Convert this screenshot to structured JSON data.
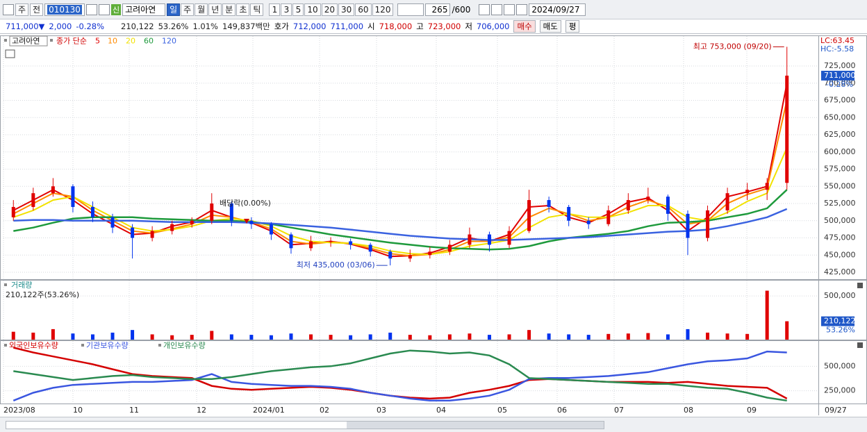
{
  "toolbar": {
    "period_type": "주",
    "prev": "전",
    "code": "010130",
    "name_badge": "신",
    "name": "고려아연",
    "periods": [
      "일",
      "주",
      "월",
      "년",
      "분",
      "초",
      "틱"
    ],
    "counts": [
      "1",
      "3",
      "5",
      "10",
      "20",
      "30",
      "60",
      "120"
    ],
    "view_count": "265",
    "max_count": "/600",
    "date": "2024/09/27"
  },
  "quote": {
    "price": "711,000▼",
    "change": "2,000",
    "change_pct": "-0.28%",
    "volume": "210,122",
    "volume_ratio": "53.26%",
    "turnover": "1.01%",
    "amount": "149,837백만",
    "ask_label": "호가",
    "ask": "712,000",
    "bid": "711,000",
    "open_label": "시",
    "open": "718,000",
    "high_label": "고",
    "high": "723,000",
    "low_label": "저",
    "low": "706,000",
    "buy": "매수",
    "sell": "매도",
    "avg": "평"
  },
  "time_axis": [
    "2023/08",
    "10",
    "11",
    "12",
    "2024/01",
    "02",
    "03",
    "04",
    "05",
    "06",
    "07",
    "08",
    "09",
    "09/27"
  ],
  "chart_data": [
    {
      "type": "candlestick",
      "legend_title": "고려아연",
      "ma_label": "종가 단순",
      "lc": "LC:63.45",
      "hc": "HC:-5.58",
      "up_color": "#e00000",
      "down_color": "#0033ee",
      "ohlc": [
        [
          505000,
          530000,
          500000,
          520000
        ],
        [
          520000,
          548000,
          515000,
          540000
        ],
        [
          540000,
          562000,
          535000,
          550000
        ],
        [
          550000,
          553000,
          512000,
          520000
        ],
        [
          520000,
          528000,
          498000,
          505000
        ],
        [
          505000,
          510000,
          482000,
          490000
        ],
        [
          490000,
          495000,
          445000,
          475000
        ],
        [
          475000,
          492000,
          470000,
          485000
        ],
        [
          485000,
          500000,
          480000,
          495000
        ],
        [
          495000,
          505000,
          490000,
          500000
        ],
        [
          500000,
          540000,
          495000,
          525000
        ],
        [
          525000,
          528000,
          492000,
          500000
        ],
        [
          500000,
          505000,
          488000,
          495000
        ],
        [
          495000,
          498000,
          472000,
          480000
        ],
        [
          480000,
          483000,
          452000,
          460000
        ],
        [
          460000,
          478000,
          456000,
          470000
        ],
        [
          470000,
          476000,
          462000,
          470000
        ],
        [
          470000,
          474000,
          458000,
          465000
        ],
        [
          465000,
          468000,
          448000,
          455000
        ],
        [
          455000,
          458000,
          435000,
          445000
        ],
        [
          445000,
          458000,
          440000,
          450000
        ],
        [
          450000,
          462000,
          445000,
          455000
        ],
        [
          455000,
          472000,
          450000,
          465000
        ],
        [
          465000,
          490000,
          460000,
          480000
        ],
        [
          480000,
          484000,
          455000,
          465000
        ],
        [
          465000,
          492000,
          460000,
          485000
        ],
        [
          485000,
          545000,
          482000,
          530000
        ],
        [
          530000,
          535000,
          512000,
          520000
        ],
        [
          520000,
          523000,
          492000,
          500000
        ],
        [
          500000,
          505000,
          488000,
          495000
        ],
        [
          495000,
          522000,
          492000,
          515000
        ],
        [
          515000,
          540000,
          510000,
          530000
        ],
        [
          530000,
          548000,
          525000,
          535000
        ],
        [
          535000,
          538000,
          500000,
          510000
        ],
        [
          510000,
          515000,
          450000,
          475000
        ],
        [
          475000,
          522000,
          470000,
          515000
        ],
        [
          515000,
          548000,
          510000,
          540000
        ],
        [
          540000,
          555000,
          530000,
          545000
        ],
        [
          545000,
          562000,
          530000,
          555000
        ],
        [
          555000,
          753000,
          545000,
          711000
        ]
      ],
      "series": [
        {
          "name": "5",
          "color": "#e00000",
          "values": [
            515000,
            530000,
            545000,
            530000,
            510000,
            495000,
            480000,
            482000,
            492000,
            498000,
            515000,
            505000,
            497000,
            485000,
            465000,
            467000,
            470000,
            466000,
            458000,
            448000,
            449000,
            453000,
            462000,
            475000,
            470000,
            480000,
            520000,
            522000,
            505000,
            497000,
            510000,
            527000,
            533000,
            515000,
            485000,
            505000,
            535000,
            542000,
            550000,
            700000
          ]
        },
        {
          "name": "10",
          "color": "#ff8a00",
          "values": [
            510000,
            525000,
            540000,
            535000,
            515000,
            500000,
            485000,
            482000,
            488000,
            495000,
            508000,
            505000,
            498000,
            488000,
            470000,
            466000,
            469000,
            467000,
            460000,
            452000,
            449000,
            451000,
            458000,
            470000,
            470000,
            476000,
            505000,
            518000,
            510000,
            500000,
            505000,
            520000,
            530000,
            520000,
            495000,
            500000,
            525000,
            538000,
            547000,
            675000
          ]
        },
        {
          "name": "20",
          "color": "#f2e200",
          "values": [
            505000,
            515000,
            530000,
            535000,
            520000,
            505000,
            490000,
            485000,
            487000,
            492000,
            500000,
            503000,
            500000,
            492000,
            478000,
            470000,
            468000,
            467000,
            463000,
            456000,
            452000,
            451000,
            455000,
            463000,
            467000,
            472000,
            490000,
            505000,
            510000,
            505000,
            505000,
            512000,
            522000,
            522000,
            505000,
            500000,
            512000,
            528000,
            540000,
            606000
          ]
        },
        {
          "name": "60",
          "color": "#1e9a3c",
          "values": [
            485000,
            490000,
            497000,
            503000,
            505000,
            505000,
            505000,
            503000,
            502000,
            501000,
            500000,
            500000,
            498000,
            495000,
            490000,
            485000,
            480000,
            476000,
            472000,
            468000,
            465000,
            462000,
            460000,
            459000,
            458000,
            459000,
            463000,
            470000,
            475000,
            478000,
            481000,
            485000,
            492000,
            497000,
            498000,
            500000,
            505000,
            510000,
            518000,
            545000
          ]
        },
        {
          "name": "120",
          "color": "#3a62e0",
          "values": [
            500000,
            501000,
            501000,
            500000,
            500000,
            500000,
            500000,
            499000,
            498000,
            498000,
            498000,
            498000,
            497000,
            496000,
            494000,
            492000,
            490000,
            487000,
            484000,
            481000,
            478000,
            476000,
            474000,
            473000,
            472000,
            472000,
            473000,
            474000,
            475000,
            476000,
            478000,
            480000,
            482000,
            484000,
            485000,
            487000,
            492000,
            498000,
            505000,
            517000
          ]
        }
      ],
      "ylim": [
        415000,
        760000
      ],
      "yticks": [
        {
          "value": 425000,
          "label": "425,000"
        },
        {
          "value": 450000,
          "label": "450,000"
        },
        {
          "value": 475000,
          "label": "475,000"
        },
        {
          "value": 500000,
          "label": "500,000"
        },
        {
          "value": 525000,
          "label": "525,000"
        },
        {
          "value": 550000,
          "label": "550,000"
        },
        {
          "value": 575000,
          "label": "575,000"
        },
        {
          "value": 600000,
          "label": "600,000"
        },
        {
          "value": 625000,
          "label": "625,000"
        },
        {
          "value": 650000,
          "label": "650,000"
        },
        {
          "value": 675000,
          "label": "675,000"
        },
        {
          "value": 700000,
          "label": "700,000"
        },
        {
          "value": 725000,
          "label": "725,000"
        }
      ],
      "last": {
        "value": 711000,
        "label": "711,000"
      },
      "last_change": "-0.28%",
      "annotations": [
        "최고 753,000 (09/20)",
        "최저 435,000 (03/06)",
        "배당락(0.00%)"
      ],
      "grid": true
    },
    {
      "type": "bar",
      "title": "거래량",
      "subtitle": "210,122주(53.26%)",
      "values": [
        90000,
        80000,
        120000,
        70000,
        60000,
        80000,
        110000,
        60000,
        50000,
        55000,
        100000,
        60000,
        55000,
        50000,
        70000,
        60000,
        55000,
        50000,
        60000,
        80000,
        55000,
        50000,
        60000,
        70000,
        55000,
        60000,
        110000,
        70000,
        60000,
        55000,
        65000,
        70000,
        75000,
        60000,
        120000,
        80000,
        70000,
        65000,
        560000,
        210122
      ],
      "ylim": [
        0,
        580000
      ],
      "yticks": [
        {
          "value": 500000,
          "label": "500,000"
        }
      ],
      "last": {
        "value": 210122,
        "label": "210,122"
      },
      "last_ratio": "53.26%",
      "grid": true
    },
    {
      "type": "line",
      "series": [
        {
          "name": "외국인보유수량",
          "color": "#d40000",
          "values": [
            690000,
            640000,
            600000,
            560000,
            520000,
            470000,
            420000,
            400000,
            390000,
            380000,
            300000,
            270000,
            260000,
            270000,
            280000,
            290000,
            280000,
            260000,
            230000,
            200000,
            180000,
            170000,
            180000,
            230000,
            260000,
            300000,
            360000,
            370000,
            360000,
            350000,
            340000,
            340000,
            340000,
            330000,
            340000,
            320000,
            300000,
            290000,
            280000,
            170000
          ]
        },
        {
          "name": "기관보유수량",
          "color": "#3a56e0",
          "values": [
            150000,
            230000,
            280000,
            310000,
            320000,
            330000,
            340000,
            340000,
            350000,
            360000,
            420000,
            340000,
            320000,
            310000,
            300000,
            300000,
            290000,
            270000,
            230000,
            200000,
            170000,
            150000,
            150000,
            170000,
            200000,
            260000,
            370000,
            380000,
            380000,
            390000,
            400000,
            420000,
            440000,
            480000,
            520000,
            550000,
            560000,
            580000,
            650000,
            640000
          ]
        },
        {
          "name": "개인보유수량",
          "color": "#2a8a50",
          "values": [
            450000,
            420000,
            390000,
            360000,
            380000,
            400000,
            410000,
            390000,
            380000,
            370000,
            370000,
            390000,
            420000,
            450000,
            470000,
            490000,
            500000,
            530000,
            580000,
            630000,
            660000,
            650000,
            630000,
            640000,
            610000,
            520000,
            380000,
            370000,
            360000,
            350000,
            340000,
            330000,
            320000,
            320000,
            300000,
            280000,
            270000,
            230000,
            180000,
            150000
          ]
        }
      ],
      "ylim": [
        120000,
        750000
      ],
      "yticks": [
        {
          "value": 250000,
          "label": "250,000"
        },
        {
          "value": 500000,
          "label": "500,000"
        }
      ],
      "grid": true
    }
  ]
}
